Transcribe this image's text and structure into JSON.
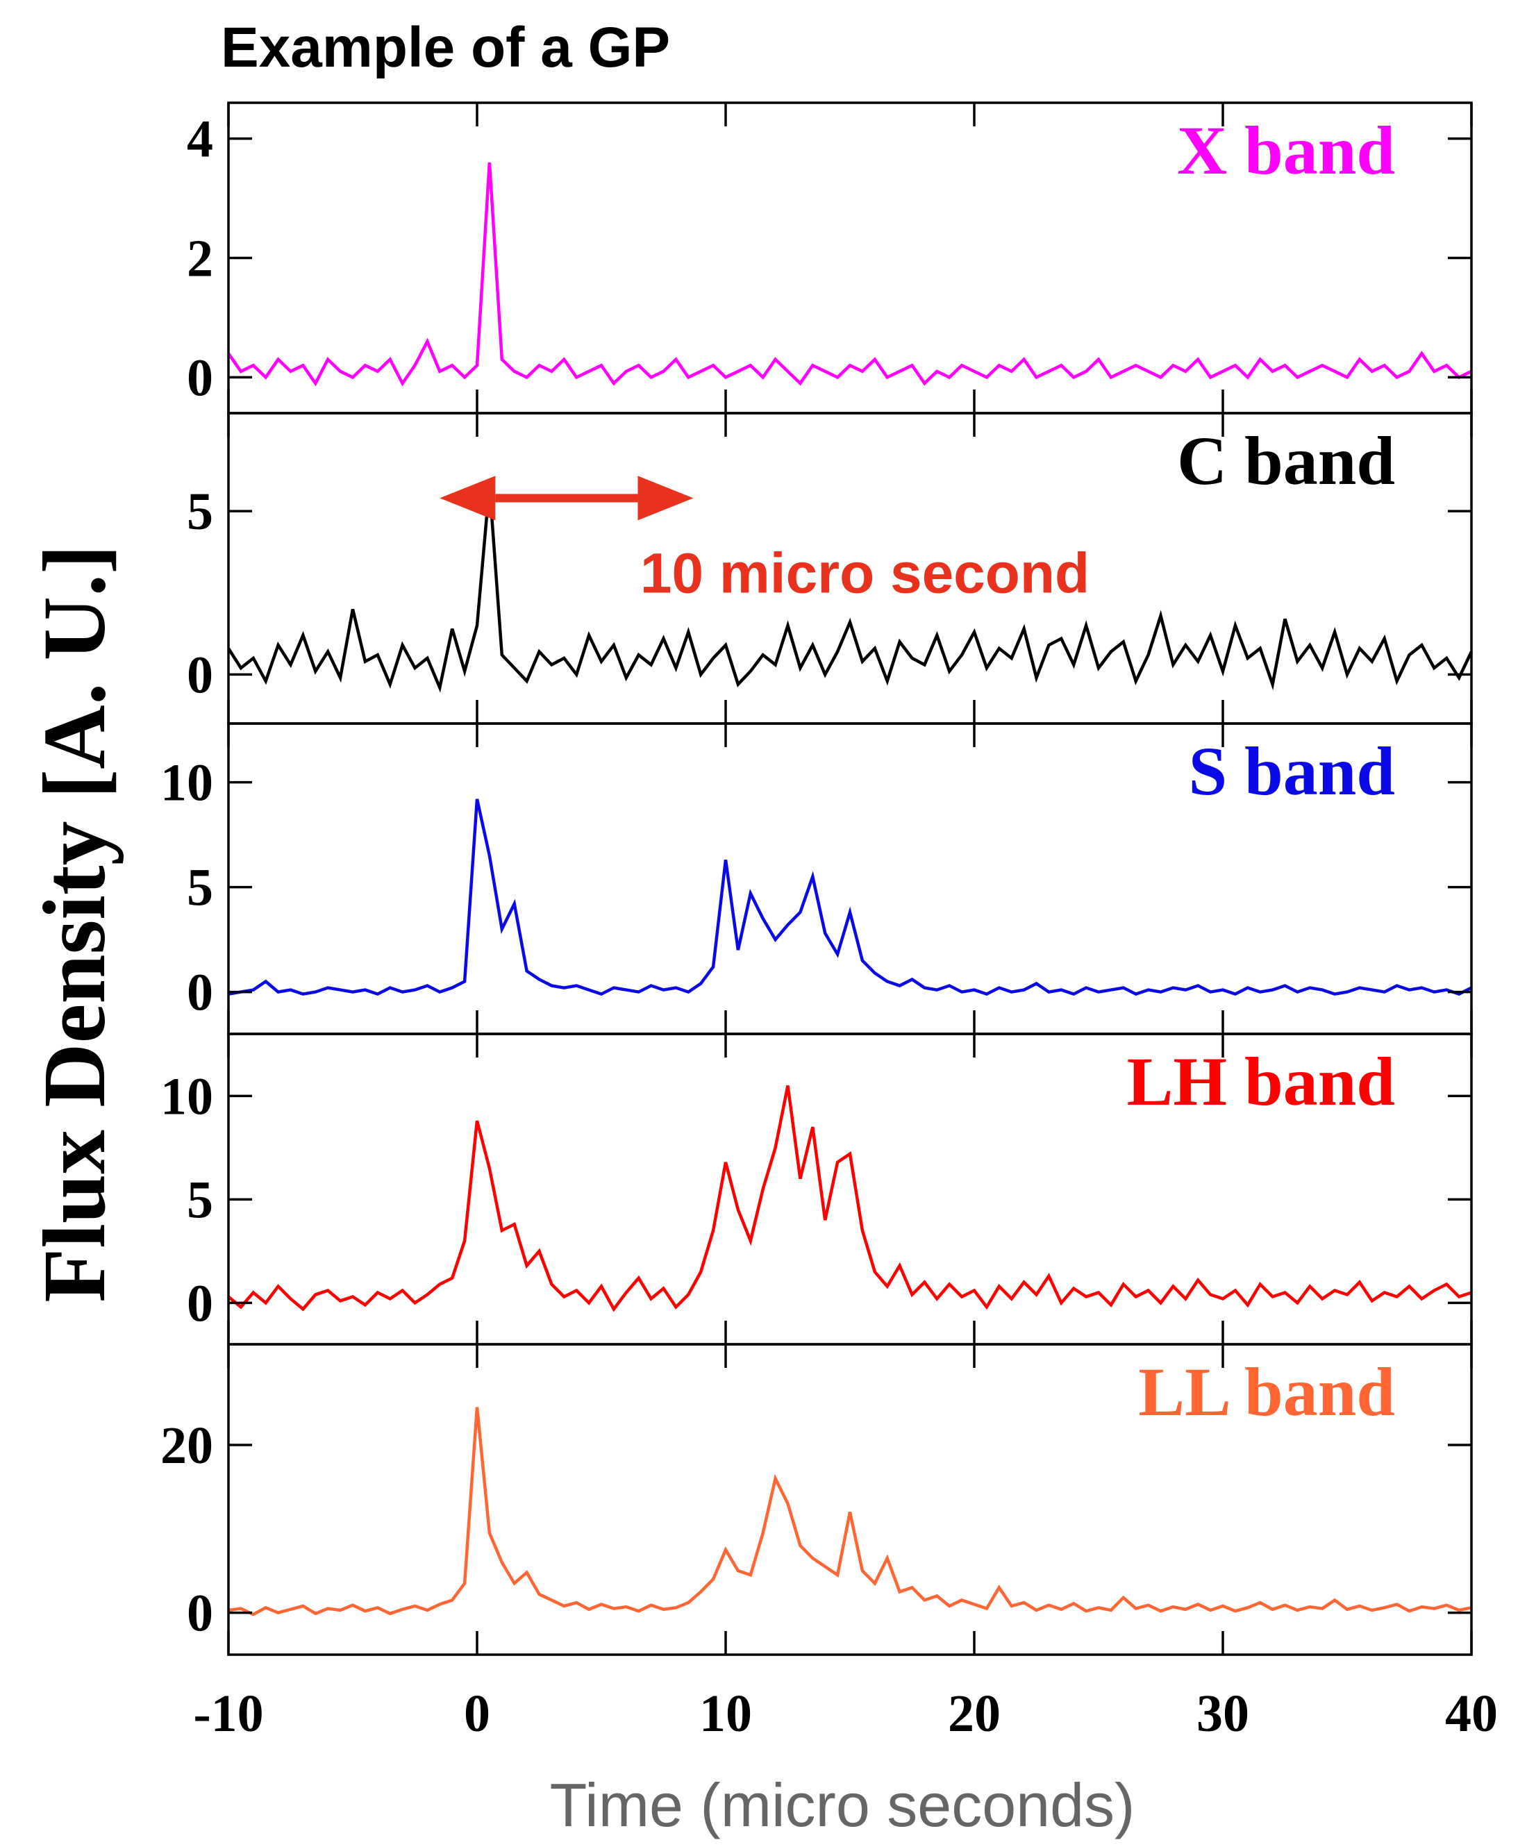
{
  "title": "Example of a GP",
  "ylabel": "Flux Density [A. U.]",
  "xlabel": "Time (micro seconds)",
  "chart_data": [
    {
      "type": "line",
      "label": "X band",
      "color": "#ff00ff",
      "x": [
        -10,
        -9.5,
        -9,
        -8.5,
        -8,
        -7.5,
        -7,
        -6.5,
        -6,
        -5.5,
        -5,
        -4.5,
        -4,
        -3.5,
        -3,
        -2.5,
        -2,
        -1.5,
        -1,
        -0.5,
        0,
        0.5,
        1,
        1.5,
        2,
        2.5,
        3,
        3.5,
        4,
        4.5,
        5,
        5.5,
        6,
        6.5,
        7,
        7.5,
        8,
        8.5,
        9,
        9.5,
        10,
        10.5,
        11,
        11.5,
        12,
        12.5,
        13,
        13.5,
        14,
        14.5,
        15,
        15.5,
        16,
        16.5,
        17,
        17.5,
        18,
        18.5,
        19,
        19.5,
        20,
        20.5,
        21,
        21.5,
        22,
        22.5,
        23,
        23.5,
        24,
        24.5,
        25,
        25.5,
        26,
        26.5,
        27,
        27.5,
        28,
        28.5,
        29,
        29.5,
        30,
        30.5,
        31,
        31.5,
        32,
        32.5,
        33,
        33.5,
        34,
        34.5,
        35,
        35.5,
        36,
        36.5,
        37,
        37.5,
        38,
        38.5,
        39,
        39.5,
        40
      ],
      "values": [
        0.4,
        0.1,
        0.2,
        0.0,
        0.3,
        0.1,
        0.2,
        -0.1,
        0.3,
        0.1,
        0.0,
        0.2,
        0.1,
        0.3,
        -0.1,
        0.2,
        0.6,
        0.1,
        0.2,
        0.0,
        0.2,
        3.6,
        0.3,
        0.1,
        0.0,
        0.2,
        0.1,
        0.3,
        0.0,
        0.1,
        0.2,
        -0.1,
        0.1,
        0.2,
        0.0,
        0.1,
        0.3,
        0.0,
        0.1,
        0.2,
        0.0,
        0.1,
        0.2,
        0.0,
        0.3,
        0.1,
        -0.1,
        0.2,
        0.1,
        0.0,
        0.2,
        0.1,
        0.3,
        0.0,
        0.1,
        0.2,
        -0.1,
        0.1,
        0.0,
        0.2,
        0.1,
        0.0,
        0.2,
        0.1,
        0.3,
        0.0,
        0.1,
        0.2,
        0.0,
        0.1,
        0.3,
        0.0,
        0.1,
        0.2,
        0.1,
        0.0,
        0.2,
        0.1,
        0.3,
        0.0,
        0.1,
        0.2,
        0.0,
        0.3,
        0.1,
        0.2,
        0.0,
        0.1,
        0.2,
        0.1,
        0.0,
        0.3,
        0.1,
        0.2,
        0.0,
        0.1,
        0.4,
        0.1,
        0.2,
        0.0,
        0.1
      ],
      "xlim": [
        -10,
        40
      ],
      "xticks": [
        -10,
        0,
        10,
        20,
        30,
        40
      ],
      "ylim": [
        -0.6,
        4.6
      ],
      "yticks": [
        0,
        2,
        4
      ]
    },
    {
      "type": "line",
      "label": "C band",
      "color": "#000000",
      "x": [
        -10,
        -9.5,
        -9,
        -8.5,
        -8,
        -7.5,
        -7,
        -6.5,
        -6,
        -5.5,
        -5,
        -4.5,
        -4,
        -3.5,
        -3,
        -2.5,
        -2,
        -1.5,
        -1,
        -0.5,
        0,
        0.5,
        1,
        1.5,
        2,
        2.5,
        3,
        3.5,
        4,
        4.5,
        5,
        5.5,
        6,
        6.5,
        7,
        7.5,
        8,
        8.5,
        9,
        9.5,
        10,
        10.5,
        11,
        11.5,
        12,
        12.5,
        13,
        13.5,
        14,
        14.5,
        15,
        15.5,
        16,
        16.5,
        17,
        17.5,
        18,
        18.5,
        19,
        19.5,
        20,
        20.5,
        21,
        21.5,
        22,
        22.5,
        23,
        23.5,
        24,
        24.5,
        25,
        25.5,
        26,
        26.5,
        27,
        27.5,
        28,
        28.5,
        29,
        29.5,
        30,
        30.5,
        31,
        31.5,
        32,
        32.5,
        33,
        33.5,
        34,
        34.5,
        35,
        35.5,
        36,
        36.5,
        37,
        37.5,
        38,
        38.5,
        39,
        39.5,
        40
      ],
      "values": [
        0.8,
        0.2,
        0.5,
        -0.2,
        0.9,
        0.3,
        1.2,
        0.1,
        0.7,
        -0.1,
        2.0,
        0.4,
        0.6,
        -0.3,
        0.9,
        0.2,
        0.5,
        -0.4,
        1.4,
        0.1,
        1.5,
        5.8,
        0.6,
        0.2,
        -0.2,
        0.7,
        0.3,
        0.5,
        0.0,
        1.2,
        0.4,
        0.9,
        -0.1,
        0.6,
        0.3,
        1.1,
        0.2,
        1.3,
        0.0,
        0.5,
        0.9,
        -0.3,
        0.1,
        0.6,
        0.3,
        1.5,
        0.2,
        0.9,
        0.0,
        0.7,
        1.6,
        0.4,
        0.8,
        -0.2,
        1.0,
        0.5,
        0.3,
        1.2,
        0.1,
        0.6,
        1.3,
        0.2,
        0.8,
        0.5,
        1.4,
        -0.1,
        0.9,
        1.1,
        0.3,
        1.5,
        0.2,
        0.7,
        1.0,
        -0.2,
        0.6,
        1.8,
        0.3,
        0.9,
        0.4,
        1.2,
        0.1,
        1.5,
        0.5,
        0.8,
        -0.3,
        1.7,
        0.4,
        0.9,
        0.2,
        1.3,
        0.0,
        0.8,
        0.4,
        1.1,
        -0.2,
        0.6,
        0.9,
        0.2,
        0.5,
        -0.1,
        0.7
      ],
      "xlim": [
        -10,
        40
      ],
      "xticks": [
        -10,
        0,
        10,
        20,
        30,
        40
      ],
      "ylim": [
        -1.5,
        8
      ],
      "yticks": [
        0,
        5
      ],
      "annotation": {
        "text": "10 micro second",
        "color": "#e8321e",
        "arrow_x": [
          -1.5,
          8.7
        ],
        "arrow_y": 5.4,
        "text_x": 15.6,
        "text_y": 3.1
      }
    },
    {
      "type": "line",
      "label": "S band",
      "color": "#0a0ae6",
      "x": [
        -10,
        -9.5,
        -9,
        -8.5,
        -8,
        -7.5,
        -7,
        -6.5,
        -6,
        -5.5,
        -5,
        -4.5,
        -4,
        -3.5,
        -3,
        -2.5,
        -2,
        -1.5,
        -1,
        -0.5,
        0,
        0.5,
        1,
        1.5,
        2,
        2.5,
        3,
        3.5,
        4,
        4.5,
        5,
        5.5,
        6,
        6.5,
        7,
        7.5,
        8,
        8.5,
        9,
        9.5,
        10,
        10.5,
        11,
        11.5,
        12,
        12.5,
        13,
        13.5,
        14,
        14.5,
        15,
        15.5,
        16,
        16.5,
        17,
        17.5,
        18,
        18.5,
        19,
        19.5,
        20,
        20.5,
        21,
        21.5,
        22,
        22.5,
        23,
        23.5,
        24,
        24.5,
        25,
        25.5,
        26,
        26.5,
        27,
        27.5,
        28,
        28.5,
        29,
        29.5,
        30,
        30.5,
        31,
        31.5,
        32,
        32.5,
        33,
        33.5,
        34,
        34.5,
        35,
        35.5,
        36,
        36.5,
        37,
        37.5,
        38,
        38.5,
        39,
        39.5,
        40
      ],
      "values": [
        -0.1,
        0.0,
        0.1,
        0.5,
        0.0,
        0.1,
        -0.1,
        0.0,
        0.2,
        0.1,
        0.0,
        0.1,
        -0.1,
        0.2,
        0.0,
        0.1,
        0.3,
        0.0,
        0.2,
        0.5,
        9.2,
        6.5,
        3.0,
        4.2,
        1.0,
        0.6,
        0.3,
        0.2,
        0.3,
        0.1,
        -0.1,
        0.2,
        0.1,
        0.0,
        0.3,
        0.1,
        0.2,
        0.0,
        0.4,
        1.2,
        6.3,
        2.0,
        4.7,
        3.5,
        2.5,
        3.2,
        3.8,
        5.5,
        2.8,
        1.8,
        3.8,
        1.5,
        0.9,
        0.5,
        0.3,
        0.6,
        0.2,
        0.1,
        0.3,
        0.0,
        0.1,
        -0.1,
        0.2,
        0.0,
        0.1,
        0.4,
        0.0,
        0.1,
        -0.1,
        0.2,
        0.0,
        0.1,
        0.2,
        -0.1,
        0.1,
        0.0,
        0.2,
        0.1,
        0.3,
        0.0,
        0.1,
        -0.1,
        0.2,
        0.0,
        0.1,
        0.3,
        0.0,
        0.2,
        0.1,
        -0.1,
        0.0,
        0.2,
        0.1,
        0.0,
        0.3,
        0.1,
        0.2,
        0.0,
        0.1,
        -0.1,
        0.2
      ],
      "xlim": [
        -10,
        40
      ],
      "xticks": [
        -10,
        0,
        10,
        20,
        30,
        40
      ],
      "ylim": [
        -2,
        12.8
      ],
      "yticks": [
        0,
        5,
        10
      ]
    },
    {
      "type": "line",
      "label": "LH band",
      "color": "#ff0000",
      "x": [
        -10,
        -9.5,
        -9,
        -8.5,
        -8,
        -7.5,
        -7,
        -6.5,
        -6,
        -5.5,
        -5,
        -4.5,
        -4,
        -3.5,
        -3,
        -2.5,
        -2,
        -1.5,
        -1,
        -0.5,
        0,
        0.5,
        1,
        1.5,
        2,
        2.5,
        3,
        3.5,
        4,
        4.5,
        5,
        5.5,
        6,
        6.5,
        7,
        7.5,
        8,
        8.5,
        9,
        9.5,
        10,
        10.5,
        11,
        11.5,
        12,
        12.5,
        13,
        13.5,
        14,
        14.5,
        15,
        15.5,
        16,
        16.5,
        17,
        17.5,
        18,
        18.5,
        19,
        19.5,
        20,
        20.5,
        21,
        21.5,
        22,
        22.5,
        23,
        23.5,
        24,
        24.5,
        25,
        25.5,
        26,
        26.5,
        27,
        27.5,
        28,
        28.5,
        29,
        29.5,
        30,
        30.5,
        31,
        31.5,
        32,
        32.5,
        33,
        33.5,
        34,
        34.5,
        35,
        35.5,
        36,
        36.5,
        37,
        37.5,
        38,
        38.5,
        39,
        39.5,
        40
      ],
      "values": [
        0.3,
        -0.2,
        0.5,
        0.0,
        0.8,
        0.2,
        -0.3,
        0.4,
        0.6,
        0.1,
        0.3,
        -0.1,
        0.5,
        0.2,
        0.6,
        0.0,
        0.4,
        0.9,
        1.2,
        3.0,
        8.8,
        6.5,
        3.5,
        3.8,
        1.8,
        2.5,
        0.9,
        0.3,
        0.6,
        0.0,
        0.8,
        -0.3,
        0.5,
        1.2,
        0.2,
        0.7,
        -0.2,
        0.4,
        1.5,
        3.5,
        6.8,
        4.5,
        3.0,
        5.5,
        7.5,
        10.5,
        6.0,
        8.5,
        4.0,
        6.8,
        7.2,
        3.5,
        1.5,
        0.8,
        1.8,
        0.4,
        1.0,
        0.2,
        0.9,
        0.3,
        0.6,
        -0.2,
        0.8,
        0.2,
        1.0,
        0.4,
        1.3,
        0.0,
        0.7,
        0.3,
        0.5,
        -0.1,
        0.9,
        0.3,
        0.6,
        0.0,
        0.8,
        0.2,
        1.1,
        0.4,
        0.2,
        0.6,
        -0.1,
        0.9,
        0.3,
        0.5,
        0.0,
        0.8,
        0.2,
        0.6,
        0.4,
        1.0,
        0.1,
        0.5,
        0.3,
        0.8,
        0.2,
        0.6,
        0.9,
        0.3,
        0.5
      ],
      "xlim": [
        -10,
        40
      ],
      "xticks": [
        -10,
        0,
        10,
        20,
        30,
        40
      ],
      "ylim": [
        -2,
        13
      ],
      "yticks": [
        0,
        5,
        10
      ]
    },
    {
      "type": "line",
      "label": "LL band",
      "color": "#ff6633",
      "x": [
        -10,
        -9.5,
        -9,
        -8.5,
        -8,
        -7.5,
        -7,
        -6.5,
        -6,
        -5.5,
        -5,
        -4.5,
        -4,
        -3.5,
        -3,
        -2.5,
        -2,
        -1.5,
        -1,
        -0.5,
        0,
        0.5,
        1,
        1.5,
        2,
        2.5,
        3,
        3.5,
        4,
        4.5,
        5,
        5.5,
        6,
        6.5,
        7,
        7.5,
        8,
        8.5,
        9,
        9.5,
        10,
        10.5,
        11,
        11.5,
        12,
        12.5,
        13,
        13.5,
        14,
        14.5,
        15,
        15.5,
        16,
        16.5,
        17,
        17.5,
        18,
        18.5,
        19,
        19.5,
        20,
        20.5,
        21,
        21.5,
        22,
        22.5,
        23,
        23.5,
        24,
        24.5,
        25,
        25.5,
        26,
        26.5,
        27,
        27.5,
        28,
        28.5,
        29,
        29.5,
        30,
        30.5,
        31,
        31.5,
        32,
        32.5,
        33,
        33.5,
        34,
        34.5,
        35,
        35.5,
        36,
        36.5,
        37,
        37.5,
        38,
        38.5,
        39,
        39.5,
        40
      ],
      "values": [
        0.3,
        0.5,
        -0.2,
        0.6,
        0.0,
        0.4,
        0.8,
        -0.1,
        0.5,
        0.3,
        0.9,
        0.2,
        0.6,
        -0.1,
        0.4,
        0.8,
        0.3,
        1.0,
        1.5,
        3.5,
        24.5,
        9.5,
        6.0,
        3.5,
        4.8,
        2.2,
        1.5,
        0.8,
        1.2,
        0.4,
        1.0,
        0.5,
        0.7,
        0.2,
        0.9,
        0.4,
        0.6,
        1.2,
        2.5,
        4.0,
        7.5,
        5.0,
        4.5,
        9.5,
        16.0,
        13.0,
        8.0,
        6.5,
        5.5,
        4.5,
        12.0,
        5.0,
        3.5,
        6.5,
        2.5,
        3.0,
        1.5,
        2.0,
        0.8,
        1.5,
        1.0,
        0.5,
        3.0,
        0.8,
        1.2,
        0.3,
        0.9,
        0.4,
        1.1,
        0.2,
        0.6,
        0.3,
        1.8,
        0.5,
        0.9,
        0.2,
        0.7,
        0.4,
        1.0,
        0.3,
        0.8,
        0.2,
        0.6,
        1.2,
        0.4,
        0.9,
        0.3,
        0.7,
        0.5,
        1.5,
        0.4,
        0.8,
        0.3,
        0.6,
        1.0,
        0.2,
        0.7,
        0.5,
        0.9,
        0.3,
        0.6
      ],
      "xlim": [
        -10,
        40
      ],
      "xticks": [
        -10,
        0,
        10,
        20,
        30,
        40
      ],
      "ylim": [
        -5,
        32
      ],
      "yticks": [
        0,
        20
      ]
    }
  ]
}
